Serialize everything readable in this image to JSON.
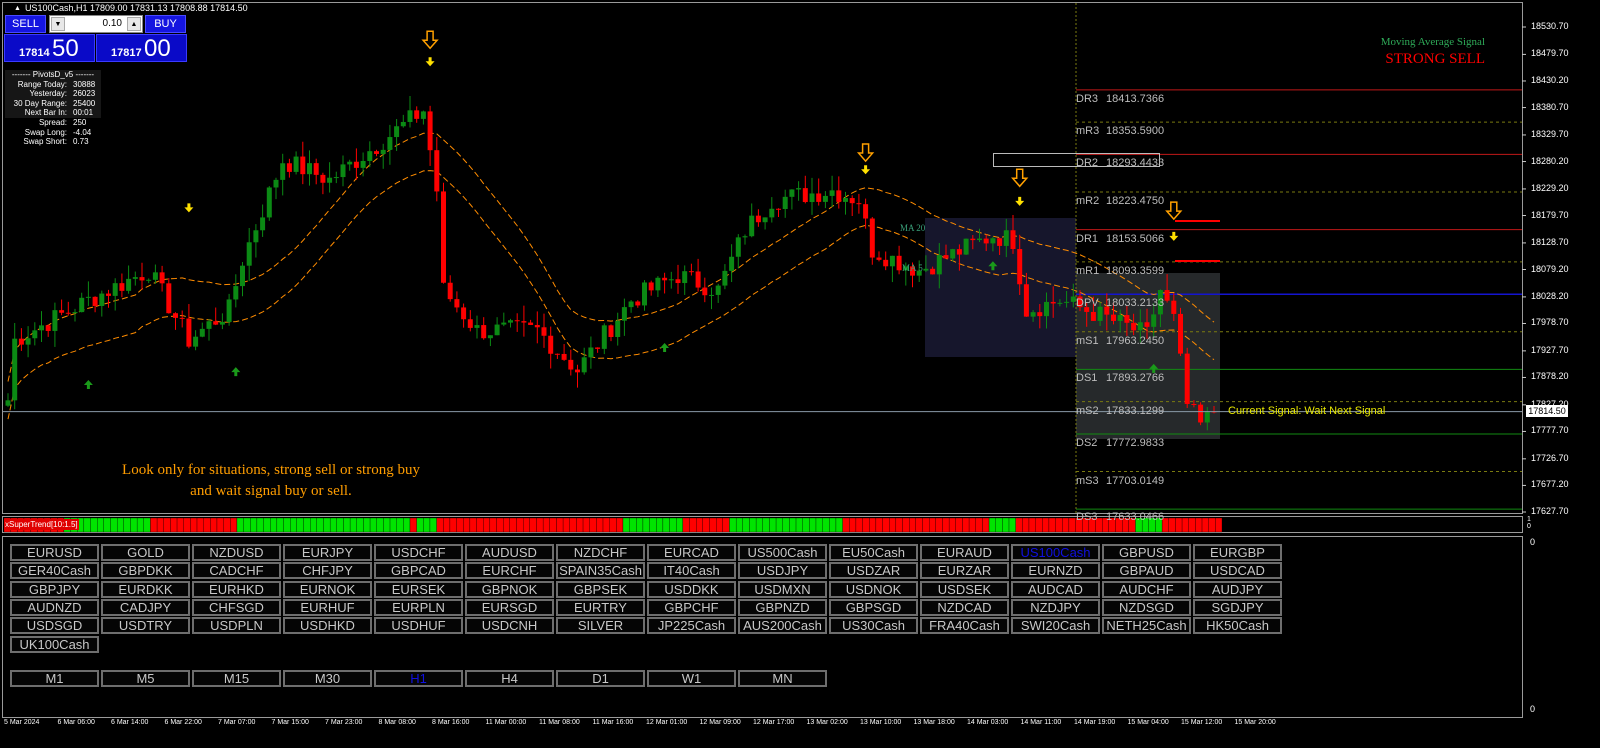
{
  "header": {
    "symbol_line": "US100Cash,H1  17809.00 17831.13 17808.88 17814.50"
  },
  "trade_panel": {
    "sell_label": "SELL",
    "buy_label": "BUY",
    "lot": "0.10",
    "sell_price_small": "17814",
    "sell_price_large": "50",
    "buy_price_small": "17817",
    "buy_price_large": "00"
  },
  "pivot_info": {
    "title": "-------  PivotsD_v5  -------",
    "rows": [
      {
        "k": "Range  Today:",
        "v": "30888"
      },
      {
        "k": "Yesterday:",
        "v": "26023"
      },
      {
        "k": "30 Day Range:",
        "v": "25400"
      },
      {
        "k": "Next Bar In:",
        "v": "00:01"
      },
      {
        "k": "Spread:",
        "v": "250"
      },
      {
        "k": "Swap  Long:",
        "v": "-4.04"
      },
      {
        "k": "Swap  Short:",
        "v": "0.73"
      }
    ]
  },
  "ma_signal": {
    "label": "Moving Average Signal",
    "value": "STRONG SELL"
  },
  "advice": {
    "line1": "Look only for situations, strong sell or strong buy",
    "line2": "and wait signal buy or sell."
  },
  "current_signal": "Current Signal: Wait Next Signal",
  "ma_labels": {
    "ma20": "MA 20",
    "ma5": "MA 5"
  },
  "price_axis": {
    "ticks": [
      "18530.70",
      "18479.70",
      "18430.20",
      "18380.70",
      "18329.70",
      "18280.20",
      "18229.20",
      "18179.70",
      "18128.70",
      "18079.20",
      "18028.20",
      "17978.70",
      "17927.70",
      "17878.20",
      "17827.20",
      "17777.70",
      "17726.70",
      "17677.20",
      "17627.70"
    ],
    "current_price": "17814.50",
    "range": [
      17627.7,
      18530.7
    ]
  },
  "time_axis": [
    "5 Mar 2024",
    "6 Mar 06:00",
    "6 Mar 14:00",
    "6 Mar 22:00",
    "7 Mar 07:00",
    "7 Mar 15:00",
    "7 Mar 23:00",
    "8 Mar 08:00",
    "8 Mar 16:00",
    "11 Mar 00:00",
    "11 Mar 08:00",
    "11 Mar 16:00",
    "12 Mar 01:00",
    "12 Mar 09:00",
    "12 Mar 17:00",
    "13 Mar 02:00",
    "13 Mar 10:00",
    "13 Mar 18:00",
    "14 Mar 03:00",
    "14 Mar 11:00",
    "14 Mar 19:00",
    "15 Mar 04:00",
    "15 Mar 12:00",
    "15 Mar 20:00"
  ],
  "pivots": [
    {
      "name": "DR3",
      "value": "18413.7366",
      "kind": "resistance"
    },
    {
      "name": "mR3",
      "value": "18353.5900",
      "kind": "mid"
    },
    {
      "name": "DR2",
      "value": "18293.4433",
      "kind": "resistance"
    },
    {
      "name": "mR2",
      "value": "18223.4750",
      "kind": "mid"
    },
    {
      "name": "DR1",
      "value": "18153.5066",
      "kind": "resistance"
    },
    {
      "name": "mR1",
      "value": "18093.3599",
      "kind": "mid"
    },
    {
      "name": "DPV",
      "value": "18033.2133",
      "kind": "pivot"
    },
    {
      "name": "mS1",
      "value": "17963.2450",
      "kind": "mid"
    },
    {
      "name": "DS1",
      "value": "17893.2766",
      "kind": "support"
    },
    {
      "name": "mS2",
      "value": "17833.1299",
      "kind": "mid"
    },
    {
      "name": "DS2",
      "value": "17772.9833",
      "kind": "support"
    },
    {
      "name": "mS3",
      "value": "17703.0149",
      "kind": "mid"
    },
    {
      "name": "DS3",
      "value": "17633.0466",
      "kind": "support"
    }
  ],
  "colors": {
    "bull": "#0b8a14",
    "bear": "#ff0000",
    "resistance": "#c01818",
    "support": "#128a12",
    "pivot": "#1414d0",
    "mid": "#7a7a10",
    "ma": "#ff8c00",
    "st_up": "#00e400",
    "st_down": "#ff0000"
  },
  "price_path": [
    [
      0,
      17836
    ],
    [
      1,
      17948
    ],
    [
      12,
      18022
    ],
    [
      21,
      18078
    ],
    [
      27,
      17948
    ],
    [
      33,
      18004
    ],
    [
      35,
      18097
    ],
    [
      41,
      18283
    ],
    [
      48,
      18246
    ],
    [
      56,
      18320
    ],
    [
      62,
      18376
    ],
    [
      64,
      18227
    ],
    [
      65,
      18041
    ],
    [
      70,
      17966
    ],
    [
      79,
      17966
    ],
    [
      85,
      17892
    ],
    [
      93,
      18022
    ],
    [
      100,
      18069
    ],
    [
      106,
      18041
    ],
    [
      110,
      18152
    ],
    [
      114,
      18209
    ],
    [
      123,
      18227
    ],
    [
      127,
      18209
    ],
    [
      129,
      18116
    ],
    [
      136,
      18078
    ],
    [
      147,
      18143
    ],
    [
      150,
      18134
    ],
    [
      152,
      18004
    ],
    [
      157,
      18022
    ],
    [
      163,
      17994
    ],
    [
      170,
      17957
    ],
    [
      172,
      18041
    ],
    [
      174,
      17985
    ],
    [
      176,
      17827
    ],
    [
      178,
      17789
    ],
    [
      180,
      17814.5
    ]
  ],
  "signals": [
    {
      "type": "big-down",
      "bar": 63,
      "price": 18506
    },
    {
      "type": "small-down",
      "bar": 63,
      "price": 18465
    },
    {
      "type": "small-down",
      "bar": 27,
      "price": 18193
    },
    {
      "type": "big-down",
      "bar": 128,
      "price": 18296
    },
    {
      "type": "small-down",
      "bar": 128,
      "price": 18264
    },
    {
      "type": "big-down",
      "bar": 151,
      "price": 18249
    },
    {
      "type": "small-down",
      "bar": 151,
      "price": 18205
    },
    {
      "type": "big-down",
      "bar": 174,
      "price": 18188
    },
    {
      "type": "small-down",
      "bar": 174,
      "price": 18140
    },
    {
      "type": "up",
      "bar": 12,
      "price": 17866
    },
    {
      "type": "up",
      "bar": 34,
      "price": 17890
    },
    {
      "type": "up",
      "bar": 98,
      "price": 17935
    },
    {
      "type": "up",
      "bar": 147,
      "price": 18087
    },
    {
      "type": "up",
      "bar": 171,
      "price": 17896
    }
  ],
  "supertrend": {
    "label": "xSuperTrend[10:1.5]",
    "runs": [
      [
        "down",
        9
      ],
      [
        "up",
        13
      ],
      [
        "down",
        13
      ],
      [
        "up",
        26
      ],
      [
        "down",
        1
      ],
      [
        "up",
        3
      ],
      [
        "down",
        28
      ],
      [
        "up",
        9
      ],
      [
        "down",
        7
      ],
      [
        "up",
        17
      ],
      [
        "down",
        22
      ],
      [
        "up",
        4
      ],
      [
        "down",
        18
      ],
      [
        "up",
        4
      ],
      [
        "down",
        9
      ]
    ],
    "scale_top": "1",
    "scale_bottom": "0"
  },
  "panel_scale": {
    "top": "0",
    "bottom": "0"
  },
  "symbols": [
    [
      "EURUSD",
      "GOLD",
      "NZDUSD",
      "EURJPY",
      "USDCHF",
      "AUDUSD",
      "NZDCHF",
      "EURCAD",
      "US500Cash",
      "EU50Cash",
      "EURAUD",
      "US100Cash",
      "GBPUSD",
      "EURGBP"
    ],
    [
      "GER40Cash",
      "GBPDKK",
      "CADCHF",
      "CHFJPY",
      "GBPCAD",
      "EURCHF",
      "SPAIN35Cash",
      "IT40Cash",
      "USDJPY",
      "USDZAR",
      "EURZAR",
      "EURNZD",
      "GBPAUD",
      "USDCAD"
    ],
    [
      "GBPJPY",
      "EURDKK",
      "EURHKD",
      "EURNOK",
      "EURSEK",
      "GBPNOK",
      "GBPSEK",
      "USDDKK",
      "USDMXN",
      "USDNOK",
      "USDSEK",
      "AUDCAD",
      "AUDCHF",
      "AUDJPY"
    ],
    [
      "AUDNZD",
      "CADJPY",
      "CHFSGD",
      "EURHUF",
      "EURPLN",
      "EURSGD",
      "EURTRY",
      "GBPCHF",
      "GBPNZD",
      "GBPSGD",
      "NZDCAD",
      "NZDJPY",
      "NZDSGD",
      "SGDJPY"
    ],
    [
      "USDSGD",
      "USDTRY",
      "USDPLN",
      "USDHKD",
      "USDHUF",
      "USDCNH",
      "SILVER",
      "JP225Cash",
      "AUS200Cash",
      "US30Cash",
      "FRA40Cash",
      "SWI20Cash",
      "NETH25Cash",
      "HK50Cash"
    ],
    [
      "UK100Cash"
    ]
  ],
  "active_symbol": "US100Cash",
  "timeframes": [
    "M1",
    "M5",
    "M15",
    "M30",
    "H1",
    "H4",
    "D1",
    "W1",
    "MN"
  ],
  "active_timeframe": "H1"
}
